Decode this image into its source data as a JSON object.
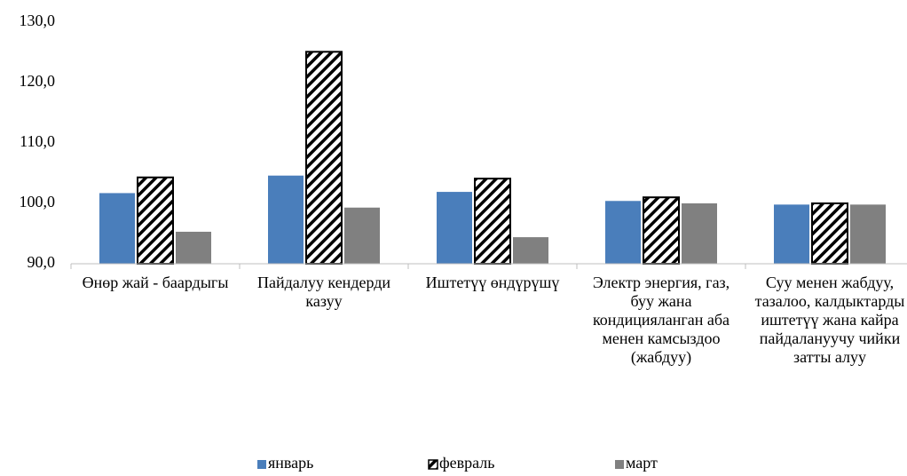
{
  "chart_data": {
    "type": "bar",
    "categories": [
      "Өнөр жай - баардыгы",
      "Пайдалуу кендерди казуу",
      "Иштетүү өндүрүшү",
      "Электр энергия, газ, буу жана кондицияланган аба менен камсыздоо (жабдуу)",
      "Суу менен жабдуу, тазалоо, калдыктарды иштетүү жана кайра пайдалануучу чийки затты алуу"
    ],
    "series": [
      {
        "name": "январь",
        "color": "#4a7ebb",
        "values": [
          101.7,
          104.6,
          101.9,
          100.4,
          99.8
        ]
      },
      {
        "name": "февраль",
        "color": "hatch",
        "values": [
          104.3,
          125.1,
          104.1,
          101.0,
          100.0
        ]
      },
      {
        "name": "март",
        "color": "#808080",
        "values": [
          95.3,
          99.3,
          94.4,
          100.0,
          99.8
        ]
      }
    ],
    "ylim": [
      90,
      130
    ],
    "yticks": [
      {
        "value": 90,
        "label": "90,0"
      },
      {
        "value": 100,
        "label": "100,0"
      },
      {
        "value": 110,
        "label": "110,0"
      },
      {
        "value": 120,
        "label": "120,0"
      },
      {
        "value": 130,
        "label": "130,0"
      }
    ],
    "grid": false,
    "legend": "bottom"
  }
}
